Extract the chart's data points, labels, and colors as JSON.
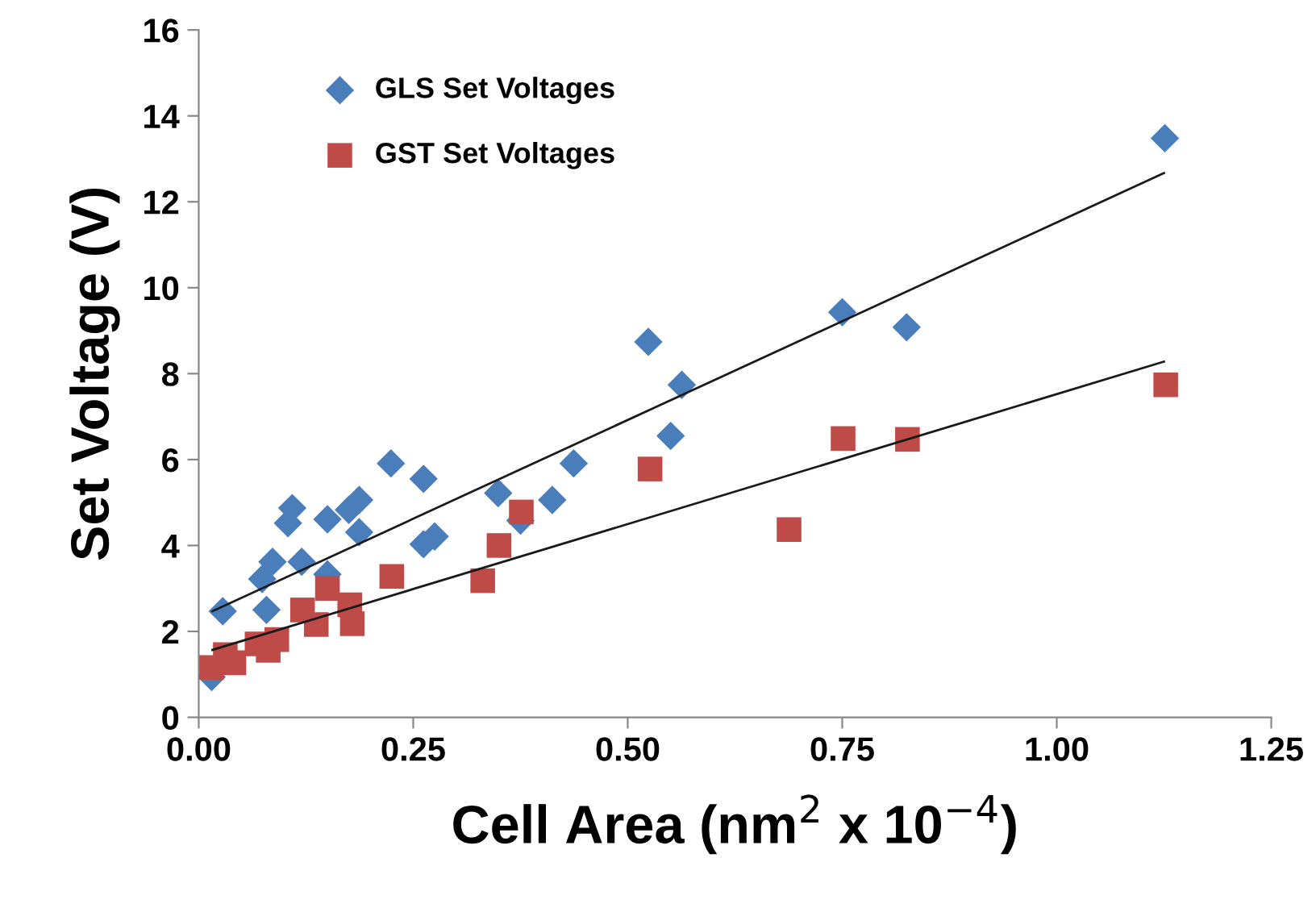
{
  "chart_data": {
    "type": "scatter",
    "xlabel": "Cell Area (nm$^{2}$ x 10$^{−4}$)",
    "ylabel": "Set Voltage (V)",
    "xlim": [
      0,
      1.25
    ],
    "xticks": [
      {
        "value": 0,
        "label": "0.00"
      },
      {
        "value": 0.25,
        "label": "0.25"
      },
      {
        "value": 0.5,
        "label": "0.50"
      },
      {
        "value": 0.75,
        "label": "0.75"
      },
      {
        "value": 1,
        "label": "1.00"
      },
      {
        "value": 1.25,
        "label": "1.25"
      }
    ],
    "ylim": [
      0,
      16
    ],
    "yticks": [
      0,
      2,
      4,
      6,
      8,
      10,
      12,
      14,
      16
    ],
    "grid": false,
    "legend": "top left",
    "series": [
      {
        "name": "GLS Set Voltages",
        "color": "#4a7ebb",
        "marker": "diamond",
        "x": [
          0.015,
          0.028,
          0.052,
          0.074,
          0.079,
          0.086,
          0.104,
          0.109,
          0.12,
          0.15,
          0.15,
          0.175,
          0.187,
          0.187,
          0.224,
          0.262,
          0.262,
          0.275,
          0.349,
          0.375,
          0.412,
          0.437,
          0.524,
          0.55,
          0.563,
          0.75,
          0.825,
          1.126
        ],
        "values": [
          0.94,
          2.47,
          null,
          3.22,
          2.5,
          3.62,
          4.52,
          4.87,
          3.62,
          4.61,
          3.33,
          4.83,
          5.06,
          4.31,
          5.91,
          5.55,
          4.03,
          4.21,
          5.22,
          4.58,
          5.06,
          5.91,
          8.74,
          6.55,
          7.74,
          9.43,
          9.08,
          13.48
        ]
      },
      {
        "name": "GST Set Voltages",
        "color": "#be4b48",
        "marker": "square",
        "x": [
          0.015,
          0.031,
          0.041,
          0.068,
          0.081,
          0.091,
          0.121,
          0.137,
          0.15,
          0.176,
          0.179,
          0.225,
          0.331,
          0.35,
          0.376,
          0.526,
          0.688,
          0.751,
          0.826,
          1.127
        ],
        "values": [
          1.16,
          1.46,
          1.27,
          1.71,
          1.56,
          1.81,
          2.5,
          2.16,
          3.0,
          2.62,
          2.18,
          3.28,
          3.18,
          4.0,
          4.78,
          5.78,
          4.37,
          6.49,
          6.47,
          7.74
        ]
      },
      {
        "type": "line",
        "color": "#1a1a1a",
        "x": [
          0.016,
          1.125
        ],
        "values": [
          2.47,
          12.67
        ]
      },
      {
        "type": "line",
        "color": "#1a1a1a",
        "x": [
          0.016,
          1.125
        ],
        "values": [
          1.57,
          8.28
        ]
      }
    ]
  }
}
